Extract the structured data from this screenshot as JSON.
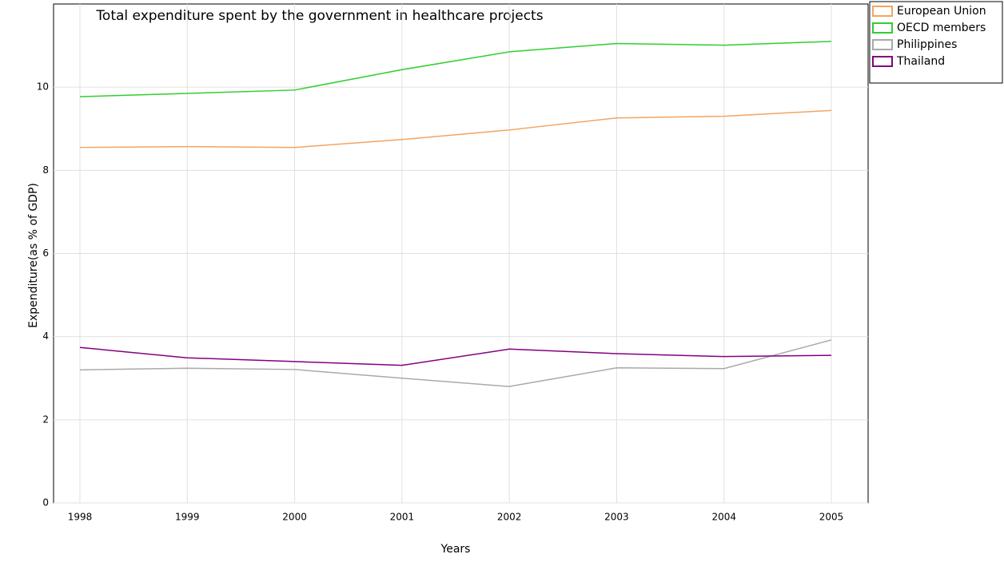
{
  "chart_data": {
    "type": "line",
    "title": "Total expenditure spent by the government in healthcare projects",
    "x_label": "Years",
    "y_label": "Expenditure(as % of GDP)",
    "categories": [
      "1998",
      "1999",
      "2000",
      "2001",
      "2002",
      "2003",
      "2004",
      "2005"
    ],
    "series": [
      {
        "name": "European Union",
        "color": "#f4a460",
        "values": [
          8.55,
          8.57,
          8.55,
          8.74,
          8.97,
          9.26,
          9.3,
          9.44
        ]
      },
      {
        "name": "OECD members",
        "color": "#32cd32",
        "values": [
          9.77,
          9.85,
          9.93,
          10.42,
          10.85,
          11.05,
          11.01,
          11.1
        ]
      },
      {
        "name": "Philippines",
        "color": "#a9a9a9",
        "values": [
          3.2,
          3.24,
          3.21,
          3.0,
          2.8,
          3.25,
          3.23,
          3.92
        ]
      },
      {
        "name": "Thailand",
        "color": "#800080",
        "values": [
          3.74,
          3.49,
          3.4,
          3.31,
          3.7,
          3.59,
          3.52,
          3.55
        ]
      }
    ],
    "ylim": [
      0,
      12
    ],
    "yticks": [
      0,
      2,
      4,
      6,
      8,
      10
    ],
    "grid": true,
    "legend": "upper right"
  }
}
